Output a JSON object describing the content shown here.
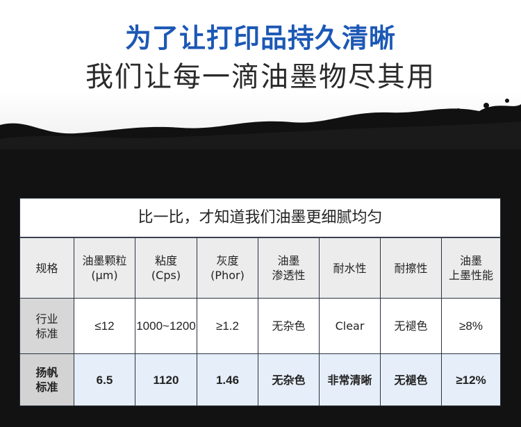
{
  "headline": {
    "line1": "为了让打印品持久清晰",
    "line2": "我们让每一滴油墨物尽其用"
  },
  "colors": {
    "accent": "#1c58b5",
    "background_dark": "#121212",
    "highlight_row": "#e6eef9"
  },
  "table": {
    "title": "比一比，才知道我们油墨更细腻均匀",
    "headers": [
      "规格",
      "油墨颗粒\n(μm)",
      "粘度\n(Cps)",
      "灰度\n(Phor)",
      "油墨\n渗透性",
      "耐水性",
      "耐擦性",
      "油墨\n上墨性能"
    ],
    "rows": [
      {
        "label": "行业\n标准",
        "cells": [
          "≤12",
          "1000~1200",
          "≥1.2",
          "无杂色",
          "Clear",
          "无褪色",
          "≥8%"
        ]
      },
      {
        "label": "扬帆\n标准",
        "cells": [
          "6.5",
          "1120",
          "1.46",
          "无杂色",
          "非常清晰",
          "无褪色",
          "≥12%"
        ]
      }
    ]
  }
}
